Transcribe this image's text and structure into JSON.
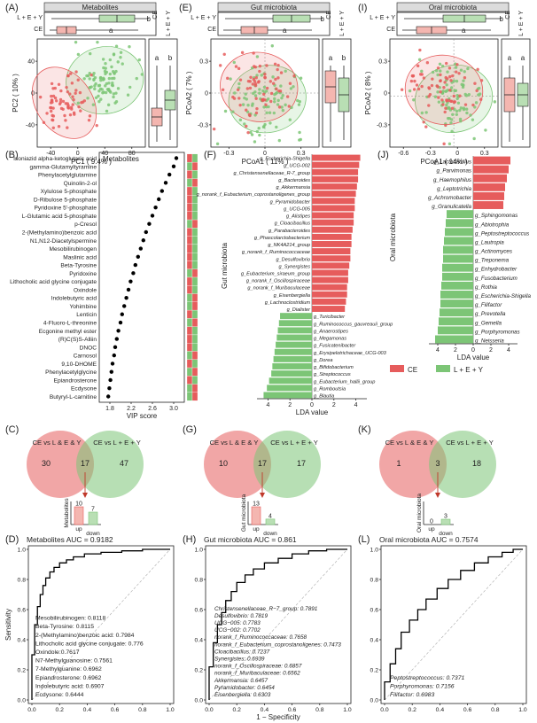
{
  "colors": {
    "ce": "#e65c5c",
    "lev": "#7cc576",
    "ce_fill": "#f4b6b0",
    "lev_fill": "#b9dfb4",
    "ink": "#222222"
  },
  "pca_panels": [
    {
      "letter": "(A)",
      "title": "Metabolites",
      "xlabel": "PC1 ( 9.4% )",
      "ylabel": "PC2 ( 10% )",
      "xticks": [
        "-40",
        "0",
        "40",
        "80"
      ],
      "yticks": [
        "40",
        "0",
        "-40"
      ],
      "groups": [
        "L + E + Y",
        "CE"
      ],
      "top_letters": [
        "b",
        "a"
      ],
      "side_letters": [
        "a",
        "b"
      ],
      "side_labels": [
        "CE",
        "L + E + Y"
      ]
    },
    {
      "letter": "(E)",
      "title": "Gut microbiota",
      "xlabel": "PCoA1 ( 11% )",
      "ylabel": "PCoA2 ( 7% )",
      "xticks": [
        "-0.3",
        "0",
        "0.3"
      ],
      "yticks": [
        "0.3",
        "0",
        "-0.3"
      ],
      "groups": [
        "L + E + Y",
        "CE"
      ],
      "top_letters": [
        "b",
        "a"
      ],
      "side_letters": [
        "a",
        "b"
      ],
      "side_labels": [
        "CE",
        "L + E + Y"
      ]
    },
    {
      "letter": "(I)",
      "title": "Oral microbiota",
      "xlabel": "PCoA1 ( 14% )",
      "ylabel": "PCoA2 ( 8% )",
      "xticks": [
        "-0.6",
        "-0.3",
        "0",
        "0.3"
      ],
      "yticks": [
        "0.3",
        "0",
        "-0.3"
      ],
      "groups": [
        "L + E + Y",
        "CE"
      ],
      "top_letters": [
        "b",
        "a"
      ],
      "side_letters": [
        "a",
        "a"
      ],
      "side_labels": [
        "CE",
        "L + E + Y"
      ]
    }
  ],
  "vip_panel": {
    "letter": "(B)",
    "inset": "Metabolites",
    "xlabel": "VIP score",
    "xticks": [
      "1.8",
      "2.2",
      "2.6",
      "3.0"
    ]
  },
  "lda_gut": {
    "letter": "(F)",
    "ylabel": "Gut microbiota",
    "xlabel": "LDA value",
    "xticks": [
      "4",
      "2",
      "0",
      "2",
      "4"
    ]
  },
  "lda_oral": {
    "letter": "(J)",
    "ylabel": "Oral microbiota",
    "xlabel": "LDA value",
    "xticks": [
      "4",
      "2",
      "0",
      "2",
      "4"
    ]
  },
  "legend": {
    "ce": "CE",
    "lev": "L + E + Y"
  },
  "venn_panels": [
    {
      "letter": "(C)",
      "left": "CE vs L & E & Y",
      "right": "CE vs L + E + Y",
      "n_left": "30",
      "n_mid": "17",
      "n_right": "47",
      "bar_label": "Metabolites",
      "up": "10",
      "down": "7",
      "up_label": "up",
      "down_label": "down"
    },
    {
      "letter": "(G)",
      "left": "CE vs L & E & Y",
      "right": "CE vs L + E + Y",
      "n_left": "10",
      "n_mid": "17",
      "n_right": "17",
      "bar_label": "Gut microbiota",
      "up": "13",
      "down": "4",
      "up_label": "up",
      "down_label": "down"
    },
    {
      "letter": "(K)",
      "left": "CE vs L & E & Y",
      "right": "CE vs L + E + Y",
      "n_left": "1",
      "n_mid": "3",
      "n_right": "18",
      "bar_label": "Oral microbiota",
      "up": "0",
      "down": "3",
      "up_label": "up",
      "down_label": "down"
    }
  ],
  "roc_panels": [
    {
      "letter": "(D)",
      "title": "Metabolites AUC = 0.9182",
      "ylabel": "Sensitivity",
      "xlabel": "",
      "lines": [
        "Mesobilirubinogen: 0.8118",
        "Beta-Tyrosine: 0.8115",
        "2-(Methylamino)benzoic acid: 0.7984",
        "Lithocholic acid glycine conjugate: 0.776",
        "Oxindole:0.7617",
        "N7-Methylguanosine: 0.7561",
        "7-Methylguanine: 0.6962",
        "Epiandrosterone: 0.6962",
        "Indolebutyric acid: 0.6907",
        "Ecdysone: 0.6444"
      ]
    },
    {
      "letter": "(H)",
      "title": "Gut microbiota AUC = 0.861",
      "ylabel": "",
      "xlabel": "1 − Specificity",
      "lines": [
        "Christensenellaceae_R−7_group: 0.7891",
        "Desulfovibrio: 0.7819",
        "UCG−005: 0.7783",
        "UCG−002: 0.7702",
        "norank_f_Ruminococcaceae: 0.7658",
        "norank_f_Eubacterium_coprostanoligenes: 0.7473",
        "Cloacibacillus: 0.7237",
        "Synergistes: 0.6939",
        "norank_f_Oscillospiraceae: 0.6857",
        "norank_f_Muribaculaceae: 0.6562",
        "Akkermansia: 0.6457",
        "Pyramidobacter: 0.6454",
        "Eisenbergiella: 0.6303"
      ]
    },
    {
      "letter": "(L)",
      "title": "Oral microbiota AUC = 0.7574",
      "ylabel": "",
      "xlabel": "",
      "lines": [
        "Peptostreptococcus: 0.7371",
        "Porphyromonas: 0.7156",
        "Filifactor: 0.6983"
      ]
    }
  ],
  "roc_ticks": [
    "0.0",
    "0.2",
    "0.4",
    "0.6",
    "0.8",
    "1.0"
  ],
  "chart_data": [
    {
      "type": "scatter",
      "title": "Metabolites",
      "xlabel": "PC1 ( 9.4% )",
      "ylabel": "PC2 ( 10% )",
      "xlim": [
        -60,
        100
      ],
      "ylim": [
        -60,
        50
      ],
      "series": [
        {
          "name": "CE",
          "center": [
            -20,
            -15
          ]
        },
        {
          "name": "L + E + Y",
          "center": [
            40,
            8
          ]
        }
      ]
    },
    {
      "type": "scatter",
      "title": "Gut microbiota",
      "xlabel": "PCoA1 ( 11% )",
      "ylabel": "PCoA2 ( 7% )",
      "xlim": [
        -0.45,
        0.45
      ],
      "ylim": [
        -0.45,
        0.45
      ],
      "series": [
        {
          "name": "CE",
          "center": [
            -0.05,
            0.05
          ]
        },
        {
          "name": "L + E + Y",
          "center": [
            0.02,
            -0.05
          ]
        }
      ]
    },
    {
      "type": "scatter",
      "title": "Oral microbiota",
      "xlabel": "PCoA1 ( 14% )",
      "ylabel": "PCoA2 ( 8% )",
      "xlim": [
        -0.65,
        0.45
      ],
      "ylim": [
        -0.4,
        0.45
      ],
      "series": [
        {
          "name": "CE",
          "center": [
            -0.1,
            0.05
          ]
        },
        {
          "name": "L + E + Y",
          "center": [
            0,
            -0.02
          ]
        }
      ]
    },
    {
      "type": "scatter",
      "title": "VIP score",
      "xlabel": "VIP score",
      "xlim": [
        1.6,
        3.2
      ],
      "categories": [
        "Isoniazid alpha-ketoglutaric acid",
        "gamma-Glutamyltyramine",
        "Phenylacetylglutamine",
        "Quinolin-2-ol",
        "Xylulose 5-phosphate",
        "D-Ribulose 5-phosphate",
        "Pyridoxine 5'-phosphate",
        "L-Glutamic acid 5-phosphate",
        "p-Cresol",
        "2-(Methylamino)benzoic acid",
        "N1,N12-Diacetylspermine",
        "Mesobilirubinogen",
        "Maslinic acid",
        "Beta-Tyrosine",
        "Pyridoxine",
        "Lithocholic acid glycine conjugate",
        "Oxindole",
        "Indolebutyric acid",
        "Yohimbine",
        "Lenticin",
        "4-Fluoro-L-threonine",
        "Ecgonine methyl ester",
        "(R)C(S)S-Alliin",
        "DNOC",
        "Carnosol",
        "9,10-DHOME",
        "Phenylacetylglycine",
        "Epiandrosterone",
        "Ecdysone",
        "Butyryl-L-carnitine"
      ],
      "values": [
        3.05,
        3.0,
        2.92,
        2.85,
        2.78,
        2.72,
        2.66,
        2.6,
        2.54,
        2.48,
        2.43,
        2.38,
        2.33,
        2.28,
        2.24,
        2.19,
        2.15,
        2.11,
        2.07,
        2.03,
        2.0,
        1.96,
        1.93,
        1.9,
        1.88,
        1.85,
        1.83,
        1.81,
        1.79,
        1.77
      ],
      "heat_row1": [
        "CE",
        "L+E+Y",
        "CE",
        "L+E+Y",
        "CE",
        "CE",
        "CE",
        "CE",
        "L+E+Y",
        "CE",
        "CE",
        "CE",
        "CE",
        "CE",
        "L+E+Y",
        "CE",
        "CE",
        "L+E+Y",
        "L+E+Y",
        "CE",
        "L+E+Y",
        "CE",
        "CE",
        "CE",
        "L+E+Y",
        "CE",
        "L+E+Y",
        "CE",
        "L+E+Y",
        "L+E+Y"
      ],
      "heat_row2": [
        "L+E+Y",
        "CE",
        "L+E+Y",
        "CE",
        "L+E+Y",
        "L+E+Y",
        "L+E+Y",
        "L+E+Y",
        "CE",
        "L+E+Y",
        "L+E+Y",
        "L+E+Y",
        "L+E+Y",
        "L+E+Y",
        "CE",
        "L+E+Y",
        "L+E+Y",
        "CE",
        "CE",
        "L+E+Y",
        "CE",
        "L+E+Y",
        "L+E+Y",
        "L+E+Y",
        "CE",
        "L+E+Y",
        "CE",
        "L+E+Y",
        "CE",
        "CE"
      ]
    },
    {
      "type": "bar",
      "title": "Gut microbiota LDA",
      "xlabel": "LDA value",
      "xlim": [
        -5,
        5
      ],
      "categories": [
        "g_Escherichia-Shigella",
        "g_UCG-002",
        "g_Christensenellaceae_R-7_group",
        "g_Bacteroides",
        "g_Akkermansia",
        "g_norank_f_Eubacterium_coprostanoligenes_group",
        "g_Pyramidobacter",
        "g_UCG-005",
        "g_Alistipes",
        "g_Cloacibacillus",
        "g_Parabacteroides",
        "g_Phascolarctobacterium",
        "g_NK4A214_group",
        "g_norank_f_Ruminococcaceae",
        "g_Desulfovibrio",
        "g_Synergistes",
        "g_Eubacterium_siraeum_group",
        "g_norank_f_Oscillospiraceae",
        "g_norank_f_Muribaculaceae",
        "g_Eisenbergiella",
        "g_Lachnoclostridium",
        "g_Dialister",
        "g_Turicibacter",
        "g_Ruminococcus_gauvreauii_group",
        "g_Anaerostipes",
        "g_Megamonas",
        "g_Fusicatenibacter",
        "g_Erysipelotrichaceae_UCG-003",
        "g_Dorea",
        "g_Bifidobacterium",
        "g_Streptococcus",
        "g_Eubacterium_hallii_group",
        "g_Romboutsia",
        "g_Blautia"
      ],
      "values": [
        4.4,
        4.3,
        4.2,
        4.2,
        4.1,
        4.0,
        3.9,
        3.9,
        3.8,
        3.8,
        3.7,
        3.6,
        3.6,
        3.5,
        3.5,
        3.4,
        3.3,
        3.3,
        3.2,
        3.2,
        3.1,
        3.0,
        -2.9,
        -3.0,
        -3.1,
        -3.2,
        -3.3,
        -3.4,
        -3.5,
        -3.6,
        -3.7,
        -3.9,
        -4.1,
        -4.4
      ],
      "series_split": {
        "CE": "positive",
        "L + E + Y": "negative"
      }
    },
    {
      "type": "bar",
      "title": "Oral microbiota LDA",
      "xlabel": "LDA value",
      "xlim": [
        -5,
        5
      ],
      "categories": [
        "g_Lactobacillus",
        "g_Parvimonas",
        "g_Haemophilus",
        "g_Leptotrichia",
        "g_Achromobacter",
        "g_Granulicatella",
        "g_Sphingomonas",
        "g_Abiotrophia",
        "g_Peptostreptococcus",
        "g_Lautropia",
        "g_Actinomyces",
        "g_Treponema",
        "g_Enhydrobacter",
        "g_Fusobacterium",
        "g_Rothia",
        "g_Escherichia-Shigella",
        "g_Filifactor",
        "g_Prevotella",
        "g_Gemella",
        "g_Porphyromonas",
        "g_Neisseria"
      ],
      "values": [
        4.2,
        4.0,
        3.8,
        3.6,
        3.5,
        3.4,
        -3.0,
        -3.1,
        -3.2,
        -3.3,
        -3.4,
        -3.4,
        -3.5,
        -3.5,
        -3.6,
        -3.7,
        -3.7,
        -3.8,
        -3.9,
        -4.0,
        -4.3
      ],
      "series_split": {
        "CE": "positive",
        "L + E + Y": "negative"
      }
    },
    {
      "type": "line",
      "title": "Metabolites AUC = 0.9182",
      "xlabel": "1 − Specificity",
      "ylabel": "Sensitivity",
      "xlim": [
        0,
        1
      ],
      "ylim": [
        0,
        1
      ],
      "x": [
        0,
        0.02,
        0.04,
        0.06,
        0.08,
        0.1,
        0.13,
        0.16,
        0.2,
        0.25,
        0.3,
        0.38,
        0.5,
        0.65,
        0.8,
        1.0
      ],
      "y": [
        0,
        0.3,
        0.5,
        0.62,
        0.7,
        0.76,
        0.81,
        0.85,
        0.88,
        0.91,
        0.93,
        0.95,
        0.97,
        0.98,
        0.99,
        1.0
      ]
    },
    {
      "type": "line",
      "title": "Gut microbiota AUC = 0.861",
      "xlabel": "1 − Specificity",
      "ylabel": "",
      "xlim": [
        0,
        1
      ],
      "ylim": [
        0,
        1
      ],
      "x": [
        0,
        0.03,
        0.06,
        0.09,
        0.12,
        0.16,
        0.2,
        0.26,
        0.32,
        0.4,
        0.5,
        0.6,
        0.72,
        0.85,
        1.0
      ],
      "y": [
        0,
        0.22,
        0.38,
        0.5,
        0.58,
        0.66,
        0.72,
        0.78,
        0.83,
        0.87,
        0.91,
        0.94,
        0.97,
        0.99,
        1.0
      ]
    },
    {
      "type": "line",
      "title": "Oral microbiota AUC = 0.7574",
      "xlabel": "1 − Specificity",
      "ylabel": "",
      "xlim": [
        0,
        1
      ],
      "ylim": [
        0,
        1
      ],
      "x": [
        0,
        0.04,
        0.08,
        0.12,
        0.18,
        0.24,
        0.3,
        0.38,
        0.46,
        0.55,
        0.65,
        0.75,
        0.85,
        0.93,
        1.0
      ],
      "y": [
        0,
        0.12,
        0.24,
        0.34,
        0.45,
        0.53,
        0.6,
        0.67,
        0.74,
        0.8,
        0.86,
        0.91,
        0.95,
        0.98,
        1.0
      ]
    }
  ]
}
